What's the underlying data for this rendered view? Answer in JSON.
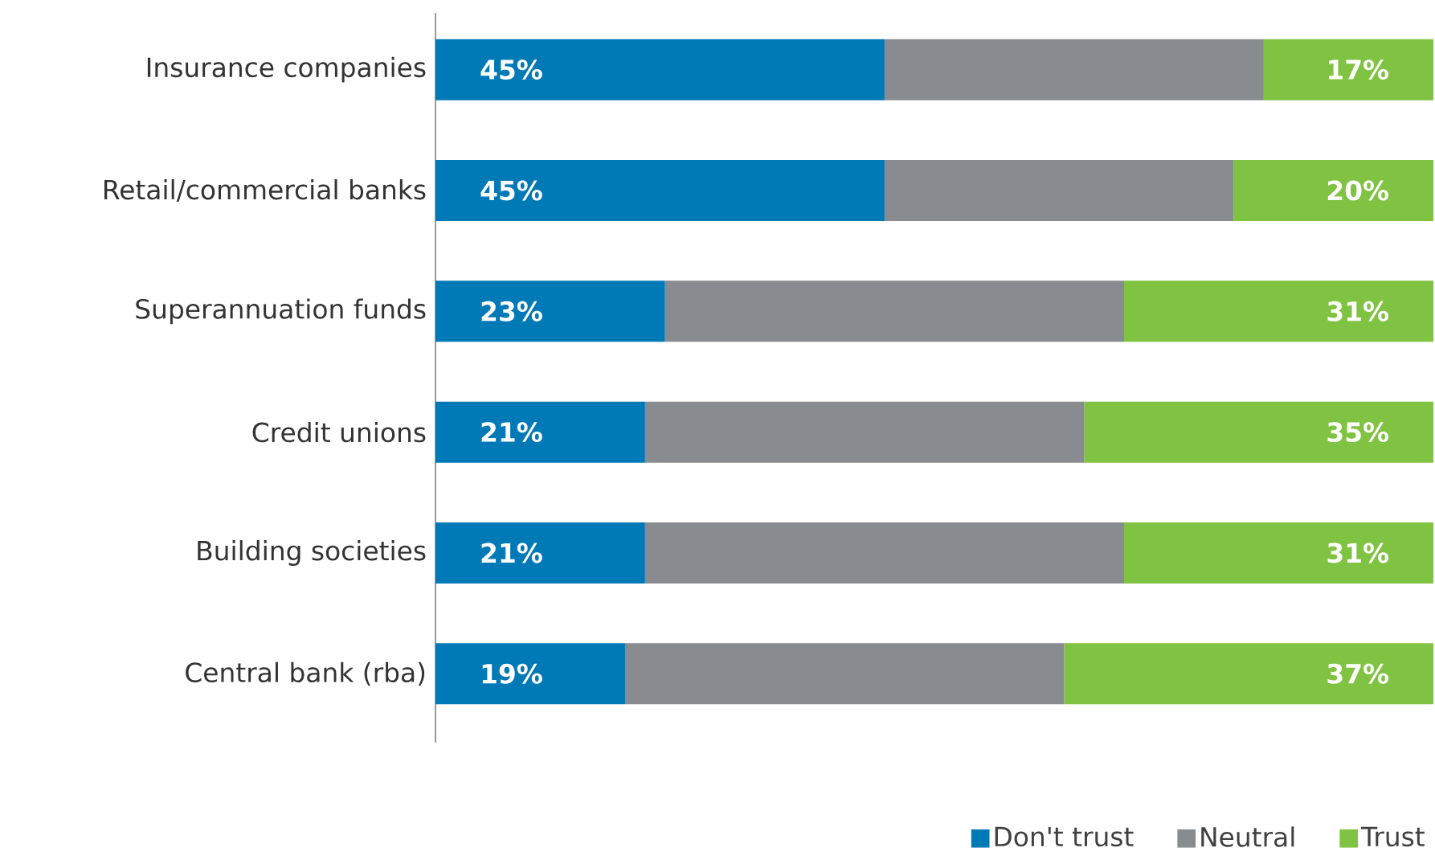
{
  "chart_data": {
    "type": "bar",
    "orientation": "horizontal",
    "stacked": true,
    "categories": [
      "Insurance companies",
      "Retail/commercial banks",
      "Superannuation funds",
      "Credit unions",
      "Building societies",
      "Central bank (rba)"
    ],
    "series": [
      {
        "name": "Don't trust",
        "color": "#0079b7",
        "values": [
          45,
          45,
          23,
          21,
          21,
          19
        ],
        "value_labels": [
          "45%",
          "45%",
          "23%",
          "21%",
          "21%",
          "19%"
        ]
      },
      {
        "name": "Neutral",
        "color": "#888b8f",
        "values": [
          38,
          35,
          46,
          44,
          48,
          44
        ]
      },
      {
        "name": "Trust",
        "color": "#80c342",
        "values": [
          17,
          20,
          31,
          35,
          31,
          37
        ],
        "value_labels": [
          "17%",
          "20%",
          "31%",
          "35%",
          "31%",
          "37%"
        ]
      }
    ],
    "tick_labels": "y",
    "legend": "bottom right"
  }
}
